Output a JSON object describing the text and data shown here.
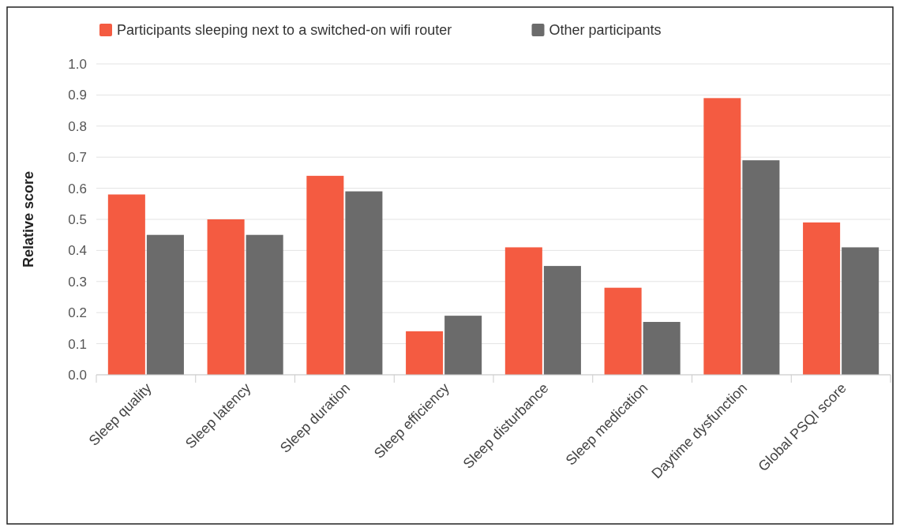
{
  "chart_data": {
    "type": "bar",
    "ylabel": "Relative score",
    "categories": [
      "Sleep quality",
      "Sleep latency",
      "Sleep duration",
      "Sleep efficiency",
      "Sleep disturbance",
      "Sleep medication",
      "Daytime dysfunction",
      "Global PSQI score"
    ],
    "series": [
      {
        "name": "Participants sleeping next to a switched-on wifi router",
        "color": "#f45b41",
        "values": [
          0.58,
          0.5,
          0.64,
          0.14,
          0.41,
          0.28,
          0.89,
          0.49
        ]
      },
      {
        "name": "Other participants",
        "color": "#6b6b6b",
        "values": [
          0.45,
          0.45,
          0.59,
          0.19,
          0.35,
          0.17,
          0.69,
          0.41
        ]
      }
    ],
    "ylim": [
      0,
      1
    ],
    "yticks": [
      {
        "value": 0,
        "label": "0.0"
      },
      0.1,
      0.2,
      0.3,
      0.4,
      0.5,
      0.6,
      0.7,
      0.8,
      0.9,
      {
        "value": 1,
        "label": "1.0"
      }
    ],
    "grid": "y",
    "legend": "top"
  }
}
